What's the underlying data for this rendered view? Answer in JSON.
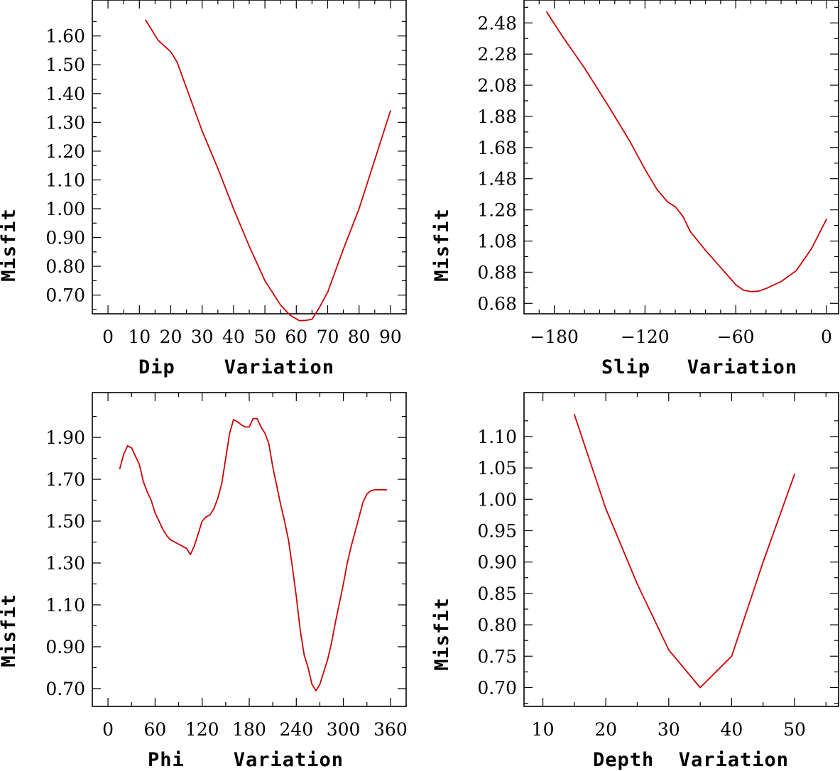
{
  "chart_data": [
    {
      "type": "line",
      "title": "",
      "xlabel": "Dip    Variation",
      "ylabel": "Misfit",
      "xlim": [
        -5,
        95
      ],
      "ylim": [
        0.635,
        1.725
      ],
      "xticks": [
        0,
        10,
        20,
        30,
        40,
        50,
        60,
        70,
        80,
        90
      ],
      "xtick_labels": [
        "0",
        "10",
        "20",
        "30",
        "40",
        "50",
        "60",
        "70",
        "80",
        "90"
      ],
      "xminor": [],
      "yticks": [
        0.7,
        0.8,
        0.9,
        1.0,
        1.1,
        1.2,
        1.3,
        1.4,
        1.5,
        1.6
      ],
      "ytick_labels": [
        "0.70",
        "0.80",
        "0.90",
        "1.00",
        "1.10",
        "1.20",
        "1.30",
        "1.40",
        "1.50",
        "1.60"
      ],
      "series": [
        {
          "name": "misfit",
          "color": "#cc0000",
          "x": [
            12,
            14,
            16,
            18,
            20,
            22,
            25,
            30,
            35,
            40,
            45,
            50,
            55,
            58,
            61,
            63,
            65,
            67,
            70,
            75,
            80,
            85,
            90
          ],
          "y": [
            1.655,
            1.62,
            1.585,
            1.565,
            1.545,
            1.51,
            1.42,
            1.27,
            1.14,
            1.0,
            0.87,
            0.75,
            0.665,
            0.63,
            0.611,
            0.612,
            0.616,
            0.65,
            0.71,
            0.86,
            1.0,
            1.17,
            1.34
          ]
        }
      ]
    },
    {
      "type": "line",
      "title": "",
      "xlabel": "Slip   Variation",
      "ylabel": "Misfit",
      "xlim": [
        -200,
        8
      ],
      "ylim": [
        0.613,
        2.627
      ],
      "xticks": [
        -180,
        -120,
        -60,
        0
      ],
      "xtick_labels": [
        "−180",
        "−120",
        "−60",
        "0"
      ],
      "xminor": [
        -190,
        -170,
        -160,
        -150,
        -140,
        -130,
        -110,
        -100,
        -90,
        -80,
        -70,
        -50,
        -40,
        -30,
        -20,
        -10
      ],
      "yticks": [
        0.68,
        0.88,
        1.08,
        1.28,
        1.48,
        1.68,
        1.88,
        2.08,
        2.28,
        2.48
      ],
      "ytick_labels": [
        "0.68",
        "0.88",
        "1.08",
        "1.28",
        "1.48",
        "1.68",
        "1.88",
        "2.08",
        "2.28",
        "2.48"
      ],
      "series": [
        {
          "name": "misfit",
          "color": "#cc0000",
          "x": [
            -185,
            -175,
            -160,
            -145,
            -130,
            -120,
            -112,
            -105,
            -100,
            -95,
            -90,
            -80,
            -70,
            -60,
            -55,
            -50,
            -45,
            -40,
            -30,
            -20,
            -10,
            0
          ],
          "y": [
            2.55,
            2.4,
            2.19,
            1.96,
            1.72,
            1.54,
            1.41,
            1.33,
            1.3,
            1.24,
            1.14,
            1.02,
            0.91,
            0.8,
            0.765,
            0.755,
            0.758,
            0.775,
            0.82,
            0.89,
            1.03,
            1.22
          ]
        }
      ]
    },
    {
      "type": "line",
      "title": "",
      "xlabel": "Phi    Variation",
      "ylabel": "Misfit",
      "xlim": [
        -20,
        380
      ],
      "ylim": [
        0.615,
        2.114
      ],
      "xticks": [
        0,
        60,
        120,
        180,
        240,
        300,
        360
      ],
      "xtick_labels": [
        "0",
        "60",
        "120",
        "180",
        "240",
        "300",
        "360"
      ],
      "xminor": [],
      "yticks": [
        0.7,
        0.9,
        1.1,
        1.3,
        1.5,
        1.7,
        1.9
      ],
      "ytick_labels": [
        "0.70",
        "0.90",
        "1.10",
        "1.30",
        "1.50",
        "1.70",
        "1.90"
      ],
      "series": [
        {
          "name": "misfit",
          "color": "#cc0000",
          "x": [
            15,
            20,
            25,
            30,
            35,
            40,
            45,
            50,
            55,
            60,
            65,
            70,
            75,
            80,
            85,
            90,
            95,
            100,
            105,
            110,
            115,
            120,
            125,
            130,
            135,
            140,
            145,
            150,
            155,
            160,
            165,
            170,
            175,
            180,
            185,
            190,
            195,
            200,
            205,
            210,
            215,
            220,
            225,
            230,
            235,
            240,
            245,
            250,
            255,
            260,
            265,
            270,
            275,
            280,
            285,
            290,
            295,
            300,
            305,
            310,
            315,
            320,
            325,
            330,
            335,
            340,
            345,
            350,
            355
          ],
          "y": [
            1.75,
            1.82,
            1.86,
            1.85,
            1.81,
            1.77,
            1.69,
            1.64,
            1.6,
            1.54,
            1.5,
            1.46,
            1.43,
            1.41,
            1.4,
            1.39,
            1.38,
            1.37,
            1.34,
            1.38,
            1.44,
            1.5,
            1.52,
            1.53,
            1.56,
            1.61,
            1.68,
            1.8,
            1.92,
            1.985,
            1.975,
            1.96,
            1.95,
            1.95,
            1.99,
            1.99,
            1.95,
            1.92,
            1.87,
            1.76,
            1.67,
            1.58,
            1.5,
            1.41,
            1.28,
            1.14,
            0.98,
            0.86,
            0.8,
            0.72,
            0.69,
            0.72,
            0.78,
            0.84,
            0.92,
            1.02,
            1.11,
            1.2,
            1.3,
            1.38,
            1.45,
            1.52,
            1.59,
            1.63,
            1.645,
            1.65,
            1.65,
            1.65,
            1.65
          ]
        }
      ]
    },
    {
      "type": "line",
      "title": "",
      "xlabel": "Depth  Variation",
      "ylabel": "Misfit",
      "xlim": [
        7,
        57
      ],
      "ylim": [
        0.67,
        1.17
      ],
      "xticks": [
        10,
        20,
        30,
        40,
        50
      ],
      "xtick_labels": [
        "10",
        "20",
        "30",
        "40",
        "50"
      ],
      "xminor": [],
      "yticks": [
        0.7,
        0.75,
        0.8,
        0.85,
        0.9,
        0.95,
        1.0,
        1.05,
        1.1
      ],
      "ytick_labels": [
        "0.70",
        "0.75",
        "0.80",
        "0.85",
        "0.90",
        "0.95",
        "1.00",
        "1.05",
        "1.10"
      ],
      "series": [
        {
          "name": "misfit",
          "color": "#cc0000",
          "x": [
            15,
            20,
            25,
            30,
            35,
            40,
            45,
            50
          ],
          "y": [
            1.135,
            0.985,
            0.865,
            0.76,
            0.7,
            0.75,
            0.9,
            1.04
          ]
        }
      ]
    }
  ]
}
